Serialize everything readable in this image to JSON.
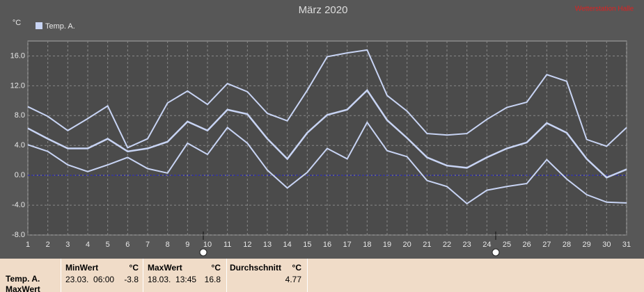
{
  "chart_data": {
    "type": "line",
    "title": "März 2020",
    "source_note": "Wetterstation Halle",
    "y_unit": "°C",
    "x": [
      1,
      2,
      3,
      4,
      5,
      6,
      7,
      8,
      9,
      10,
      11,
      12,
      13,
      14,
      15,
      16,
      17,
      18,
      19,
      20,
      21,
      22,
      23,
      24,
      25,
      26,
      27,
      28,
      29,
      30,
      31
    ],
    "xlim": [
      1,
      31
    ],
    "series": [
      {
        "name": "Temp. A.",
        "color": "#c8d4f4",
        "values": [
          6.3,
          4.9,
          3.6,
          3.6,
          4.9,
          3.2,
          3.6,
          4.5,
          7.2,
          6.0,
          8.8,
          8.2,
          4.9,
          2.2,
          5.7,
          8.1,
          8.8,
          11.4,
          7.4,
          5.0,
          2.4,
          1.3,
          1.0,
          2.4,
          3.6,
          4.4,
          7.0,
          5.7,
          2.2,
          -0.3,
          0.8
        ],
        "max_values": [
          9.2,
          7.9,
          6.0,
          7.6,
          9.3,
          3.7,
          4.9,
          9.7,
          11.3,
          9.5,
          12.3,
          11.2,
          8.3,
          7.3,
          11.4,
          15.9,
          16.4,
          16.8,
          10.7,
          8.6,
          5.6,
          5.4,
          5.6,
          7.5,
          9.1,
          9.8,
          13.5,
          12.6,
          4.8,
          3.9,
          6.4
        ],
        "min_values": [
          4.1,
          3.2,
          1.4,
          0.5,
          1.4,
          2.4,
          0.9,
          0.3,
          4.3,
          2.8,
          6.4,
          4.3,
          0.7,
          -1.7,
          0.4,
          3.6,
          2.2,
          7.1,
          3.3,
          2.5,
          -0.7,
          -1.5,
          -3.8,
          -2.0,
          -1.5,
          -1.1,
          2.1,
          -0.5,
          -2.6,
          -3.6,
          -3.7
        ]
      }
    ],
    "ylim": [
      -8,
      18
    ],
    "yticks": [
      {
        "value": -8,
        "label": "-8.0"
      },
      {
        "value": -4,
        "label": "-4.0"
      },
      {
        "value": 0,
        "label": "0.0"
      },
      {
        "value": 4,
        "label": "4.0"
      },
      {
        "value": 8,
        "label": "8.0"
      },
      {
        "value": 12,
        "label": "12.0"
      },
      {
        "value": 16,
        "label": "16.0"
      }
    ],
    "grid": true,
    "zero_line_color": "#2020c0"
  },
  "stats_table": {
    "row_labels": [
      "Temp. A.",
      "MaxWert"
    ],
    "columns": [
      {
        "header": "MinWert",
        "unit": "°C",
        "when": "23.03.  06:00",
        "value": -3.8
      },
      {
        "header": "MaxWert",
        "unit": "°C",
        "when": "18.03.  13:45",
        "value": 16.8
      },
      {
        "header": "Durchschnitt",
        "unit": "°C",
        "value": 4.77
      }
    ]
  }
}
